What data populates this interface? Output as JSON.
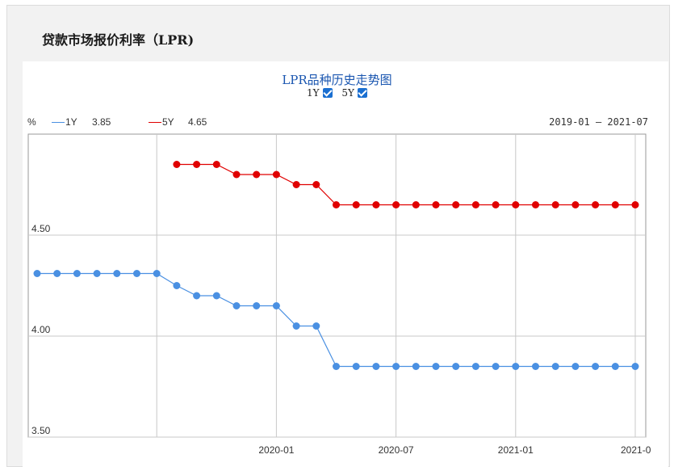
{
  "page_title": "贷款市场报价利率（LPR)",
  "chart_title": "LPR品种历史走势图",
  "toggles": [
    {
      "label": "1Y",
      "checked": true
    },
    {
      "label": "5Y",
      "checked": true
    }
  ],
  "legend": {
    "unit": "%",
    "series": [
      {
        "label": "1Y",
        "value": "3.85",
        "color": "#4a90e2"
      },
      {
        "label": "5Y",
        "value": "4.65",
        "color": "#e00000"
      }
    ]
  },
  "date_range": "2019-01 – 2021-07",
  "chart_data": {
    "type": "line",
    "ylim": [
      3.5,
      5.0
    ],
    "yticks": [
      "4.50",
      "4.00",
      "3.50"
    ],
    "xticks": [
      "2020-01",
      "2020-07",
      "2021-01",
      "2021-0"
    ],
    "series": [
      {
        "name": "1Y",
        "color": "#4a90e2",
        "values": [
          4.31,
          4.31,
          4.31,
          4.31,
          4.31,
          4.31,
          4.31,
          4.25,
          4.2,
          4.2,
          4.15,
          4.15,
          4.15,
          4.05,
          4.05,
          3.85,
          3.85,
          3.85,
          3.85,
          3.85,
          3.85,
          3.85,
          3.85,
          3.85,
          3.85,
          3.85,
          3.85,
          3.85,
          3.85,
          3.85,
          3.85
        ]
      },
      {
        "name": "5Y",
        "color": "#e00000",
        "values": [
          null,
          null,
          null,
          null,
          null,
          null,
          null,
          4.85,
          4.85,
          4.85,
          4.8,
          4.8,
          4.8,
          4.75,
          4.75,
          4.65,
          4.65,
          4.65,
          4.65,
          4.65,
          4.65,
          4.65,
          4.65,
          4.65,
          4.65,
          4.65,
          4.65,
          4.65,
          4.65,
          4.65,
          4.65
        ]
      }
    ]
  }
}
